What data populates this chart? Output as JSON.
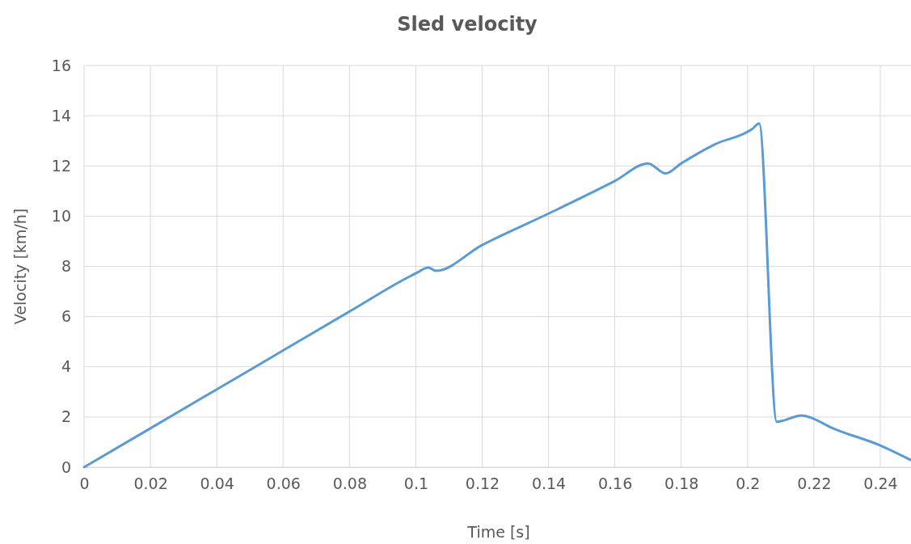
{
  "chart_data": {
    "type": "line",
    "title": "Sled velocity",
    "xlabel": "Time [s]",
    "ylabel": "Velocity [km/h]",
    "x": [
      0,
      0.02,
      0.04,
      0.06,
      0.08,
      0.1,
      0.1038,
      0.106,
      0.12,
      0.14,
      0.16,
      0.17,
      0.1753,
      0.18,
      0.19,
      0.2015,
      0.2035,
      0.2088,
      0.2163,
      0.2192,
      0.2249,
      0.2403,
      0.2493
    ],
    "series": [
      {
        "color": "#5b9bd5",
        "values": [
          0,
          1.55,
          3.1,
          4.65,
          6.2,
          7.72,
          7.95,
          7.82,
          8.85,
          10.1,
          11.4,
          12.1,
          11.7,
          12.1,
          12.85,
          13.48,
          13.69,
          1.81,
          2.06,
          1.97,
          1.6,
          0.85,
          0.28
        ]
      }
    ],
    "xlim": [
      0,
      0.25
    ],
    "ylim": [
      0,
      16
    ],
    "xticks": [
      0,
      0.02,
      0.04,
      0.06,
      0.08,
      0.1,
      0.12,
      0.14,
      0.16,
      0.18,
      0.2,
      0.22,
      0.24
    ],
    "yticks": [
      0,
      2,
      4,
      6,
      8,
      10,
      12,
      14,
      16
    ],
    "grid": true,
    "marker": "none",
    "line_style": "solid"
  }
}
